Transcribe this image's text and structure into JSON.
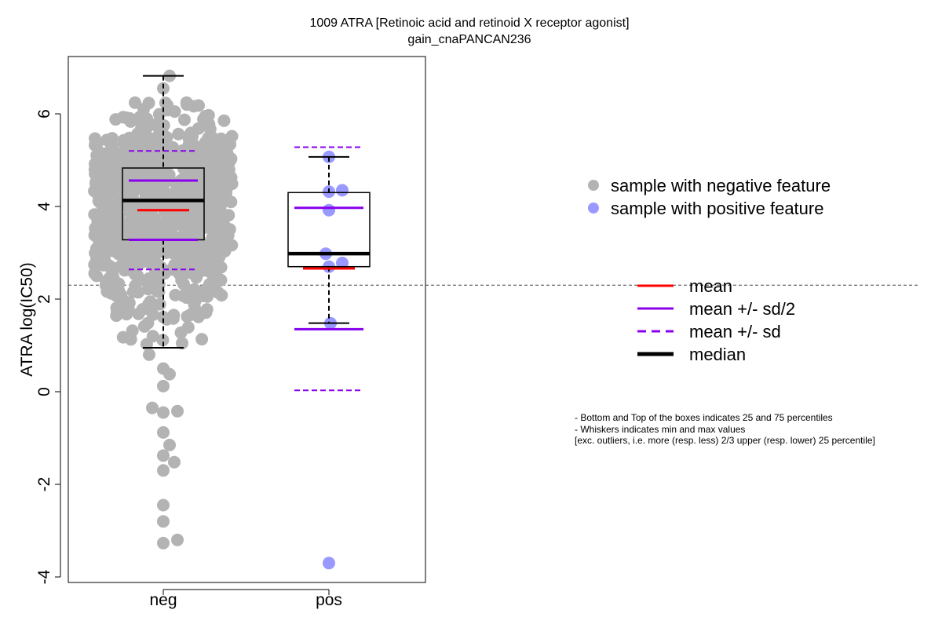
{
  "chart_data": {
    "type": "boxplot-beeswarm",
    "title_line1": "1009 ATRA [Retinoic acid and retinoid X receptor agonist]",
    "title_line2": "gain_cnaPANCAN236",
    "ylabel": "ATRA log(IC50)",
    "xlabel": "",
    "ylim": [
      -4.1,
      7.1
    ],
    "yticks": [
      -4,
      -2,
      0,
      2,
      4,
      6
    ],
    "ytick_labels": [
      "-4",
      "-2",
      "0",
      "2",
      "4",
      "6"
    ],
    "reference_line_y": 2.3,
    "colors": {
      "negative_point": "#b3b3b3",
      "positive_point": "#9999ff",
      "mean": "#ff0000",
      "sd": "#8800ee",
      "median": "#000000"
    },
    "groups": [
      {
        "label": "neg",
        "whisker_low": 0.95,
        "q1": 3.28,
        "median": 4.13,
        "q3": 4.83,
        "whisker_high": 6.82,
        "mean": 3.92,
        "mean_minus_half_sd": 3.28,
        "mean_plus_half_sd": 4.56,
        "mean_minus_sd": 2.64,
        "mean_plus_sd": 5.2,
        "outliers": [
          0.8,
          0.5,
          0.38,
          0.12,
          -0.35,
          -0.45,
          -0.42,
          -0.88,
          -1.15,
          -1.38,
          -1.52,
          -1.7,
          -2.45,
          -2.8,
          -3.2,
          -3.27
        ]
      },
      {
        "label": "pos",
        "whisker_low": 1.48,
        "q1": 2.7,
        "median": 2.98,
        "q3": 4.3,
        "whisker_high": 5.07,
        "mean": 2.66,
        "mean_minus_half_sd": 1.35,
        "mean_plus_half_sd": 3.97,
        "mean_minus_sd": 0.03,
        "mean_plus_sd": 5.28,
        "points": [
          5.07,
          4.35,
          4.32,
          3.92,
          2.98,
          2.78,
          2.7,
          1.48,
          -3.7
        ]
      }
    ],
    "legend_points": [
      {
        "label": "sample with negative feature",
        "color": "#b3b3b3"
      },
      {
        "label": "sample with positive feature",
        "color": "#9999ff"
      }
    ],
    "legend_lines": [
      {
        "label": "mean",
        "color": "#ff0000",
        "style": "solid",
        "weight": "normal"
      },
      {
        "label": "mean +/- sd/2",
        "color": "#8800ee",
        "style": "solid",
        "weight": "normal"
      },
      {
        "label": "mean +/- sd",
        "color": "#8800ee",
        "style": "dashed",
        "weight": "normal"
      },
      {
        "label": "median",
        "color": "#000000",
        "style": "solid",
        "weight": "bold"
      }
    ],
    "notes": [
      "- Bottom and Top of the boxes indicates 25 and 75 percentiles",
      "- Whiskers indicates min and max values",
      "[exc. outliers, i.e. more (resp. less) 2/3 upper (resp. lower) 25 percentile]"
    ]
  }
}
